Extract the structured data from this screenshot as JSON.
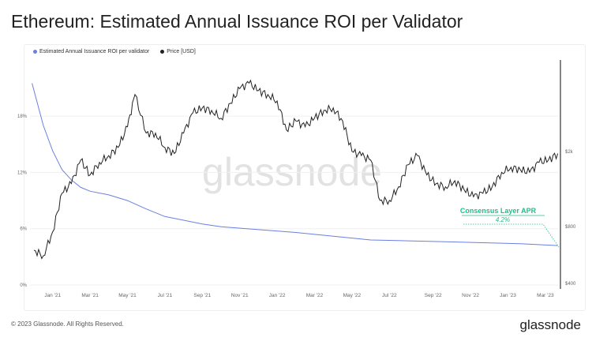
{
  "title": "Ethereum: Estimated Annual Issuance ROI per Validator",
  "footer": "© 2023 Glassnode. All Rights Reserved.",
  "brand": "glassnode",
  "watermark": "glassnode",
  "chart_data": {
    "type": "line",
    "title": "Ethereum: Estimated Annual Issuance ROI per Validator",
    "legend": [
      {
        "name": "Estimated Annual Issuance ROI per validator",
        "color": "#6b7fe0"
      },
      {
        "name": "Price [USD]",
        "color": "#222222"
      }
    ],
    "legend_placement": "top-left",
    "x_ticks": [
      "Jan '21",
      "Mar '21",
      "May '21",
      "Jul '21",
      "Sep '21",
      "Nov '21",
      "Jan '22",
      "Mar '22",
      "May '22",
      "Jul '22",
      "Sep '22",
      "Nov '22",
      "Jan '23",
      "Mar '23"
    ],
    "x_unit": "months since Dec 2020",
    "left_axis": {
      "ticks": [
        "0%",
        "6%",
        "12%",
        "18%"
      ],
      "values": [
        0,
        6,
        12,
        18
      ],
      "ylim": [
        0,
        24
      ]
    },
    "right_axis": {
      "scale": "log",
      "ticks": [
        "$400",
        "$800",
        "$2k"
      ],
      "values": [
        400,
        800,
        2000
      ]
    },
    "series": [
      {
        "name": "Estimated Annual Issuance ROI per validator",
        "axis": "left",
        "unit": "%",
        "x": [
          -0.1,
          0.5,
          1,
          1.5,
          2,
          2.5,
          3,
          4,
          5,
          6,
          7,
          8,
          9,
          10,
          12,
          14,
          16,
          18,
          20,
          22,
          24,
          26,
          28
        ],
        "y": [
          21.5,
          17,
          14.3,
          12.3,
          11.2,
          10.4,
          10.0,
          9.6,
          9.0,
          8.1,
          7.3,
          6.9,
          6.5,
          6.2,
          5.9,
          5.6,
          5.2,
          4.8,
          4.7,
          4.6,
          4.5,
          4.4,
          4.2
        ]
      },
      {
        "name": "Price [USD]",
        "axis": "right",
        "unit": "USD",
        "x": [
          0,
          0.5,
          1,
          1.5,
          2,
          2.5,
          3,
          3.5,
          4,
          4.5,
          5,
          5.4,
          6,
          6.5,
          7,
          7.5,
          8,
          8.5,
          9,
          9.5,
          10,
          10.5,
          11,
          11.5,
          12,
          12.5,
          13,
          13.5,
          14,
          14.5,
          15,
          15.5,
          16,
          16.5,
          17,
          17.5,
          18,
          18.5,
          19,
          19.5,
          20,
          20.5,
          21,
          21.5,
          22,
          22.5,
          23,
          23.5,
          24,
          24.5,
          25,
          25.5,
          26,
          26.5,
          27,
          27.5,
          28
        ],
        "y": [
          600,
          560,
          750,
          1200,
          1350,
          1800,
          1500,
          1750,
          1900,
          2100,
          2700,
          4000,
          2500,
          2500,
          2100,
          1950,
          2500,
          3200,
          3400,
          3300,
          3000,
          3600,
          4300,
          4600,
          4200,
          4000,
          3700,
          2600,
          2900,
          2700,
          3000,
          3300,
          3400,
          2900,
          2000,
          1900,
          1800,
          1100,
          1100,
          1300,
          1700,
          1900,
          1500,
          1350,
          1300,
          1400,
          1250,
          1150,
          1200,
          1300,
          1550,
          1650,
          1600,
          1550,
          1750,
          1800,
          1950
        ]
      }
    ],
    "annotation": {
      "label": "Consensus Layer APR",
      "value": "4.2%",
      "color": "#1fbf8a"
    }
  }
}
